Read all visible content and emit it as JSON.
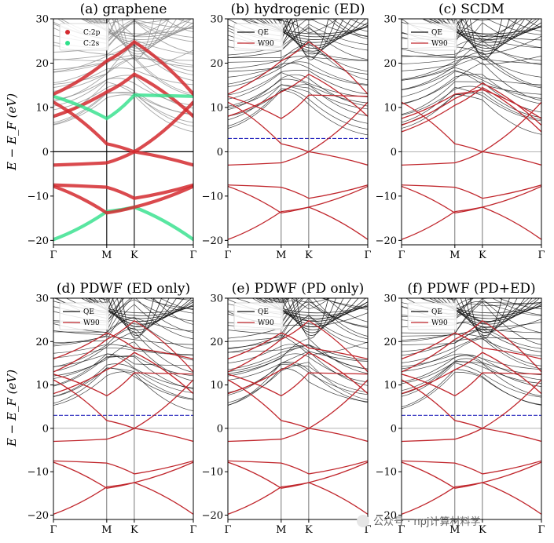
{
  "colors": {
    "qe": "#111111",
    "qe_graphene": "#8a8a8a",
    "w90": "#c0262c",
    "cp": "#d42a2f",
    "cs": "#2fe08a",
    "fermi_blue": "#2b2bbf"
  },
  "ylabel": "E − E_F (eV)",
  "watermark": "公众号 · npj计算材料学",
  "chart_data": [
    {
      "type": "line",
      "title": "(a) graphene",
      "xlabel": "",
      "ylabel": "E − E_F (eV)",
      "ylim": [
        -21,
        30
      ],
      "yticks": [
        -20,
        -10,
        0,
        10,
        20,
        30
      ],
      "ytick_labels": [
        "−20",
        "−10",
        "0",
        "10",
        "20",
        "30"
      ],
      "x_ticks": [
        "Γ",
        "M",
        "K",
        "Γ"
      ],
      "legend": [
        {
          "label": "C:2p",
          "kind": "dot",
          "color": "#d42a2f"
        },
        {
          "label": "C:2s",
          "kind": "dot",
          "color": "#2fe08a"
        }
      ],
      "bands": [
        {
          "name": "σ-low (2s)",
          "style": "cs",
          "values": [
            -19.8,
            -13.5,
            -12.5,
            -19.8
          ]
        },
        {
          "name": "σ-2",
          "style": "cp",
          "values": [
            -7.8,
            -13.8,
            -12.5,
            -7.8
          ]
        },
        {
          "name": "σ-3",
          "style": "cp",
          "values": [
            -7.5,
            -8.0,
            -10.5,
            -7.5
          ]
        },
        {
          "name": "π-occ",
          "style": "cp",
          "values": [
            -3.0,
            -2.5,
            0.0,
            -3.0
          ]
        },
        {
          "name": "π*",
          "style": "cp",
          "values": [
            11.2,
            1.8,
            0.0,
            11.2
          ]
        },
        {
          "name": "σ*-1",
          "style": "cp",
          "values": [
            8.0,
            13.5,
            17.5,
            8.0
          ]
        },
        {
          "name": "σ*-2",
          "style": "cs",
          "values": [
            12.5,
            7.5,
            12.8,
            12.5
          ]
        },
        {
          "name": "σ*-3",
          "style": "cp",
          "values": [
            13.0,
            20.5,
            24.8,
            13.0
          ]
        }
      ]
    },
    {
      "type": "line",
      "title": "(b) hydrogenic (ED)",
      "xlabel": "",
      "ylabel": "",
      "ylim": [
        -21,
        30
      ],
      "yticks": [
        -20,
        -10,
        0,
        10,
        20,
        30
      ],
      "ytick_labels": [
        "−20",
        "−10",
        "0",
        "10",
        "20",
        "30"
      ],
      "x_ticks": [
        "Γ",
        "M",
        "K",
        "Γ"
      ],
      "legend": [
        {
          "label": "QE",
          "kind": "line",
          "color": "#111111"
        },
        {
          "label": "W90",
          "kind": "line",
          "color": "#c0262c"
        }
      ],
      "frozen_window": 3.0,
      "bands": [
        {
          "name": "σ-low",
          "style": "w90",
          "values": [
            -19.8,
            -13.5,
            -12.5,
            -19.8
          ]
        },
        {
          "name": "σ-2",
          "style": "w90",
          "values": [
            -7.8,
            -13.8,
            -12.5,
            -7.8
          ]
        },
        {
          "name": "σ-3",
          "style": "w90",
          "values": [
            -7.5,
            -8.0,
            -10.5,
            -7.5
          ]
        },
        {
          "name": "π-occ",
          "style": "w90",
          "values": [
            -3.0,
            -2.5,
            0.0,
            -3.0
          ]
        },
        {
          "name": "π*",
          "style": "w90",
          "values": [
            11.2,
            1.8,
            0.0,
            11.2
          ]
        },
        {
          "name": "σ*-1",
          "style": "w90",
          "values": [
            8.0,
            13.5,
            17.5,
            8.0
          ]
        },
        {
          "name": "σ*-2",
          "style": "w90",
          "values": [
            12.5,
            7.5,
            12.8,
            12.5
          ]
        },
        {
          "name": "σ*-3",
          "style": "w90",
          "values": [
            13.0,
            20.5,
            24.8,
            13.0
          ]
        }
      ]
    },
    {
      "type": "line",
      "title": "(c) SCDM",
      "xlabel": "",
      "ylabel": "",
      "ylim": [
        -21,
        30
      ],
      "yticks": [
        -20,
        -10,
        0,
        10,
        20,
        30
      ],
      "ytick_labels": [
        "−20",
        "−10",
        "0",
        "10",
        "20",
        "30"
      ],
      "x_ticks": [
        "Γ",
        "M",
        "K",
        "Γ"
      ],
      "legend": [
        {
          "label": "QE",
          "kind": "line",
          "color": "#111111"
        },
        {
          "label": "W90",
          "kind": "line",
          "color": "#c0262c"
        }
      ],
      "bands": [
        {
          "name": "σ-low",
          "style": "w90",
          "values": [
            -19.8,
            -13.5,
            -12.5,
            -19.8
          ]
        },
        {
          "name": "σ-2",
          "style": "w90",
          "values": [
            -7.8,
            -13.8,
            -12.5,
            -7.8
          ]
        },
        {
          "name": "σ-3",
          "style": "w90",
          "values": [
            -7.5,
            -8.0,
            -10.5,
            -7.5
          ]
        },
        {
          "name": "π-occ",
          "style": "w90",
          "values": [
            -3.0,
            -2.5,
            0.0,
            -3.0
          ]
        },
        {
          "name": "π*",
          "style": "w90",
          "values": [
            11.2,
            1.8,
            0.0,
            11.2
          ]
        },
        {
          "name": "σ*-1",
          "style": "w90",
          "values": [
            4.5,
            10.5,
            14.5,
            4.5
          ]
        },
        {
          "name": "σ*-2",
          "style": "w90",
          "values": [
            6.0,
            12.0,
            15.5,
            6.0
          ]
        },
        {
          "name": "σ*-3",
          "style": "w90",
          "values": [
            7.5,
            13.0,
            14.0,
            7.5
          ]
        }
      ]
    },
    {
      "type": "line",
      "title": "(d) PDWF (ED only)",
      "xlabel": "",
      "ylabel": "E − E_F (eV)",
      "ylim": [
        -21,
        30
      ],
      "yticks": [
        -20,
        -10,
        0,
        10,
        20,
        30
      ],
      "ytick_labels": [
        "−20",
        "−10",
        "0",
        "10",
        "20",
        "30"
      ],
      "x_ticks": [
        "Γ",
        "M",
        "K",
        "Γ"
      ],
      "legend": [
        {
          "label": "QE",
          "kind": "line",
          "color": "#111111"
        },
        {
          "label": "W90",
          "kind": "line",
          "color": "#c0262c"
        }
      ],
      "frozen_window": 3.0,
      "bands": [
        {
          "name": "σ-low",
          "style": "w90",
          "values": [
            -19.8,
            -13.5,
            -12.5,
            -19.8
          ]
        },
        {
          "name": "σ-2",
          "style": "w90",
          "values": [
            -7.8,
            -13.8,
            -12.5,
            -7.8
          ]
        },
        {
          "name": "σ-3",
          "style": "w90",
          "values": [
            -7.5,
            -8.0,
            -10.5,
            -7.5
          ]
        },
        {
          "name": "π-occ",
          "style": "w90",
          "values": [
            -3.0,
            -2.5,
            0.0,
            -3.0
          ]
        },
        {
          "name": "π*",
          "style": "w90",
          "values": [
            11.2,
            1.8,
            0.0,
            11.2
          ]
        },
        {
          "name": "σ*-1",
          "style": "w90",
          "values": [
            8.0,
            13.5,
            17.5,
            8.0
          ]
        },
        {
          "name": "σ*-2",
          "style": "w90",
          "values": [
            12.5,
            7.5,
            12.8,
            12.5
          ]
        },
        {
          "name": "σ*-3",
          "style": "w90",
          "values": [
            13.0,
            20.5,
            24.8,
            13.0
          ]
        },
        {
          "name": "extra-1",
          "style": "w90",
          "values": [
            16.0,
            22.0,
            18.5,
            16.0
          ]
        }
      ]
    },
    {
      "type": "line",
      "title": "(e) PDWF (PD only)",
      "xlabel": "",
      "ylabel": "",
      "ylim": [
        -21,
        30
      ],
      "yticks": [
        -20,
        -10,
        0,
        10,
        20,
        30
      ],
      "ytick_labels": [
        "−20",
        "−10",
        "0",
        "10",
        "20",
        "30"
      ],
      "x_ticks": [
        "Γ",
        "M",
        "K",
        "Γ"
      ],
      "legend": [
        {
          "label": "QE",
          "kind": "line",
          "color": "#111111"
        },
        {
          "label": "W90",
          "kind": "line",
          "color": "#c0262c"
        }
      ],
      "bands": [
        {
          "name": "σ-low",
          "style": "w90",
          "values": [
            -19.8,
            -13.5,
            -12.5,
            -19.8
          ]
        },
        {
          "name": "σ-2",
          "style": "w90",
          "values": [
            -7.8,
            -13.8,
            -12.5,
            -7.8
          ]
        },
        {
          "name": "σ-3",
          "style": "w90",
          "values": [
            -7.5,
            -8.0,
            -10.5,
            -7.5
          ]
        },
        {
          "name": "π-occ",
          "style": "w90",
          "values": [
            -3.0,
            -2.5,
            0.0,
            -3.0
          ]
        },
        {
          "name": "π*",
          "style": "w90",
          "values": [
            11.2,
            1.8,
            0.0,
            11.2
          ]
        },
        {
          "name": "σ*-1",
          "style": "w90",
          "values": [
            8.0,
            13.5,
            17.5,
            8.0
          ]
        },
        {
          "name": "σ*-2",
          "style": "w90",
          "values": [
            12.5,
            7.5,
            12.8,
            12.5
          ]
        },
        {
          "name": "σ*-3",
          "style": "w90",
          "values": [
            13.0,
            20.5,
            24.8,
            13.0
          ]
        },
        {
          "name": "extra-1",
          "style": "w90",
          "values": [
            16.0,
            22.0,
            18.5,
            16.0
          ]
        }
      ]
    },
    {
      "type": "line",
      "title": "(f) PDWF (PD+ED)",
      "xlabel": "",
      "ylabel": "",
      "ylim": [
        -21,
        30
      ],
      "yticks": [
        -20,
        -10,
        0,
        10,
        20,
        30
      ],
      "ytick_labels": [
        "−20",
        "−10",
        "0",
        "10",
        "20",
        "30"
      ],
      "x_ticks": [
        "Γ",
        "M",
        "K",
        "Γ"
      ],
      "legend": [
        {
          "label": "QE",
          "kind": "line",
          "color": "#111111"
        },
        {
          "label": "W90",
          "kind": "line",
          "color": "#c0262c"
        }
      ],
      "frozen_window": 3.0,
      "bands": [
        {
          "name": "σ-low",
          "style": "w90",
          "values": [
            -19.8,
            -13.5,
            -12.5,
            -19.8
          ]
        },
        {
          "name": "σ-2",
          "style": "w90",
          "values": [
            -7.8,
            -13.8,
            -12.5,
            -7.8
          ]
        },
        {
          "name": "σ-3",
          "style": "w90",
          "values": [
            -7.5,
            -8.0,
            -10.5,
            -7.5
          ]
        },
        {
          "name": "π-occ",
          "style": "w90",
          "values": [
            -3.0,
            -2.5,
            0.0,
            -3.0
          ]
        },
        {
          "name": "π*",
          "style": "w90",
          "values": [
            11.2,
            1.8,
            0.0,
            11.2
          ]
        },
        {
          "name": "σ*-1",
          "style": "w90",
          "values": [
            8.0,
            13.5,
            17.5,
            8.0
          ]
        },
        {
          "name": "σ*-2",
          "style": "w90",
          "values": [
            12.5,
            7.5,
            12.8,
            12.5
          ]
        },
        {
          "name": "σ*-3",
          "style": "w90",
          "values": [
            13.0,
            20.5,
            24.8,
            13.0
          ]
        },
        {
          "name": "extra-1",
          "style": "w90",
          "values": [
            16.0,
            22.0,
            18.5,
            16.0
          ]
        }
      ]
    }
  ]
}
